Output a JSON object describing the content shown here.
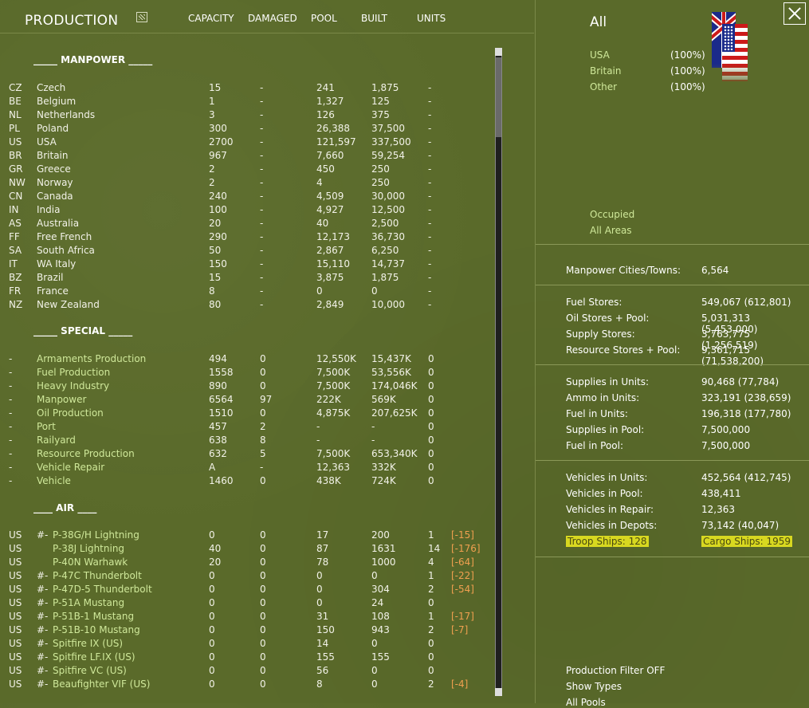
{
  "header": {
    "title": "PRODUCTION",
    "columns": [
      "CAPACITY",
      "DAMAGED",
      "POOL",
      "BUILT",
      "UNITS"
    ]
  },
  "sections": {
    "manpower": "_____ MANPOWER _____",
    "special": "_____ SPECIAL _____",
    "air": "____ AIR ____"
  },
  "manpower": [
    {
      "code": "CZ",
      "name": "Czech",
      "cap": "15",
      "dam": "-",
      "pool": "241",
      "built": "1,875",
      "units": "-"
    },
    {
      "code": "BE",
      "name": "Belgium",
      "cap": "1",
      "dam": "-",
      "pool": "1,327",
      "built": "125",
      "units": "-"
    },
    {
      "code": "NL",
      "name": "Netherlands",
      "cap": "3",
      "dam": "-",
      "pool": "126",
      "built": "375",
      "units": "-"
    },
    {
      "code": "PL",
      "name": "Poland",
      "cap": "300",
      "dam": "-",
      "pool": "26,388",
      "built": "37,500",
      "units": "-"
    },
    {
      "code": "US",
      "name": "USA",
      "cap": "2700",
      "dam": "-",
      "pool": "121,597",
      "built": "337,500",
      "units": "-"
    },
    {
      "code": "BR",
      "name": "Britain",
      "cap": "967",
      "dam": "-",
      "pool": "7,660",
      "built": "59,254",
      "units": "-"
    },
    {
      "code": "GR",
      "name": "Greece",
      "cap": "2",
      "dam": "-",
      "pool": "450",
      "built": "250",
      "units": "-"
    },
    {
      "code": "NW",
      "name": "Norway",
      "cap": "2",
      "dam": "-",
      "pool": "4",
      "built": "250",
      "units": "-"
    },
    {
      "code": "CN",
      "name": "Canada",
      "cap": "240",
      "dam": "-",
      "pool": "4,509",
      "built": "30,000",
      "units": "-"
    },
    {
      "code": "IN",
      "name": "India",
      "cap": "100",
      "dam": "-",
      "pool": "4,927",
      "built": "12,500",
      "units": "-"
    },
    {
      "code": "AS",
      "name": "Australia",
      "cap": "20",
      "dam": "-",
      "pool": "40",
      "built": "2,500",
      "units": "-"
    },
    {
      "code": "FF",
      "name": "Free French",
      "cap": "290",
      "dam": "-",
      "pool": "12,173",
      "built": "36,730",
      "units": "-"
    },
    {
      "code": "SA",
      "name": "South Africa",
      "cap": "50",
      "dam": "-",
      "pool": "2,867",
      "built": "6,250",
      "units": "-"
    },
    {
      "code": "IT",
      "name": "WA Italy",
      "cap": "150",
      "dam": "-",
      "pool": "15,110",
      "built": "14,737",
      "units": "-"
    },
    {
      "code": "BZ",
      "name": "Brazil",
      "cap": "15",
      "dam": "-",
      "pool": "3,875",
      "built": "1,875",
      "units": "-"
    },
    {
      "code": "FR",
      "name": "France",
      "cap": "8",
      "dam": "-",
      "pool": "0",
      "built": "0",
      "units": "-"
    },
    {
      "code": "NZ",
      "name": "New Zealand",
      "cap": "80",
      "dam": "-",
      "pool": "2,849",
      "built": "10,000",
      "units": "-"
    }
  ],
  "special": [
    {
      "code": "-",
      "name": "Armaments Production",
      "cap": "494",
      "dam": "0",
      "pool": "12,550K",
      "built": "15,437K",
      "units": "0"
    },
    {
      "code": "-",
      "name": "Fuel Production",
      "cap": "1558",
      "dam": "0",
      "pool": "7,500K",
      "built": "53,556K",
      "units": "0"
    },
    {
      "code": "-",
      "name": "Heavy Industry",
      "cap": "890",
      "dam": "0",
      "pool": "7,500K",
      "built": "174,046K",
      "units": "0"
    },
    {
      "code": "-",
      "name": "Manpower",
      "cap": "6564",
      "dam": "97",
      "pool": "222K",
      "built": "569K",
      "units": "0"
    },
    {
      "code": "-",
      "name": "Oil Production",
      "cap": "1510",
      "dam": "0",
      "pool": "4,875K",
      "built": "207,625K",
      "units": "0"
    },
    {
      "code": "-",
      "name": "Port",
      "cap": "457",
      "dam": "2",
      "pool": "-",
      "built": "-",
      "units": "0"
    },
    {
      "code": "-",
      "name": "Railyard",
      "cap": "638",
      "dam": "8",
      "pool": "-",
      "built": "-",
      "units": "0"
    },
    {
      "code": "-",
      "name": "Resource Production",
      "cap": "632",
      "dam": "5",
      "pool": "7,500K",
      "built": "653,340K",
      "units": "0"
    },
    {
      "code": "-",
      "name": "Vehicle Repair",
      "cap": "A",
      "dam": "-",
      "pool": "12,363",
      "built": "332K",
      "units": "0"
    },
    {
      "code": "-",
      "name": "Vehicle",
      "cap": "1460",
      "dam": "0",
      "pool": "438K",
      "built": "724K",
      "units": "0"
    }
  ],
  "air": [
    {
      "code": "US",
      "pre": "#-",
      "name": "P-38G/H Lightning",
      "cap": "0",
      "dam": "0",
      "pool": "17",
      "built": "200",
      "units": "1",
      "neg": "[-15]"
    },
    {
      "code": "US",
      "pre": "",
      "name": "P-38J Lightning",
      "cap": "40",
      "dam": "0",
      "pool": "87",
      "built": "1631",
      "units": "14",
      "neg": "[-176]"
    },
    {
      "code": "US",
      "pre": "",
      "name": "P-40N Warhawk",
      "cap": "20",
      "dam": "0",
      "pool": "78",
      "built": "1000",
      "units": "4",
      "neg": "[-64]"
    },
    {
      "code": "US",
      "pre": "#-",
      "name": "P-47C Thunderbolt",
      "cap": "0",
      "dam": "0",
      "pool": "0",
      "built": "0",
      "units": "1",
      "neg": "[-22]"
    },
    {
      "code": "US",
      "pre": "#-",
      "name": "P-47D-5 Thunderbolt",
      "cap": "0",
      "dam": "0",
      "pool": "0",
      "built": "304",
      "units": "2",
      "neg": "[-54]"
    },
    {
      "code": "US",
      "pre": "#-",
      "name": "P-51A Mustang",
      "cap": "0",
      "dam": "0",
      "pool": "0",
      "built": "24",
      "units": "0",
      "neg": ""
    },
    {
      "code": "US",
      "pre": "#-",
      "name": "P-51B-1 Mustang",
      "cap": "0",
      "dam": "0",
      "pool": "31",
      "built": "108",
      "units": "1",
      "neg": "[-17]"
    },
    {
      "code": "US",
      "pre": "#-",
      "name": "P-51B-10 Mustang",
      "cap": "0",
      "dam": "0",
      "pool": "150",
      "built": "943",
      "units": "2",
      "neg": "[-7]"
    },
    {
      "code": "US",
      "pre": "#-",
      "name": "Spitfire IX (US)",
      "cap": "0",
      "dam": "0",
      "pool": "14",
      "built": "0",
      "units": "0",
      "neg": ""
    },
    {
      "code": "US",
      "pre": "#-",
      "name": "Spitfire LF.IX (US)",
      "cap": "0",
      "dam": "0",
      "pool": "155",
      "built": "155",
      "units": "0",
      "neg": ""
    },
    {
      "code": "US",
      "pre": "#-",
      "name": "Spitfire VC (US)",
      "cap": "0",
      "dam": "0",
      "pool": "56",
      "built": "0",
      "units": "0",
      "neg": ""
    },
    {
      "code": "US",
      "pre": "#-",
      "name": "Beaufighter VIF (US)",
      "cap": "0",
      "dam": "0",
      "pool": "8",
      "built": "0",
      "units": "2",
      "neg": "[-4]"
    }
  ],
  "right": {
    "title": "All",
    "nations": [
      {
        "name": "USA",
        "pct": "(100%)"
      },
      {
        "name": "Britain",
        "pct": "(100%)"
      },
      {
        "name": "Other",
        "pct": "(100%)"
      }
    ],
    "occupied": "Occupied",
    "all_areas": "All Areas",
    "manpower_cities": {
      "label": "Manpower Cities/Towns:",
      "value": "6,564"
    },
    "stores": [
      {
        "label": "Fuel Stores:",
        "value": "549,067 (612,801)"
      },
      {
        "label": "Oil Stores + Pool:",
        "value": "5,031,313 (5,453,000)"
      },
      {
        "label": "Supply Stores:",
        "value": "3,763,775 (1,256,519)"
      },
      {
        "label": "Resource Stores + Pool:",
        "value": "9,361,715 (71,538,200)"
      }
    ],
    "supplies": [
      {
        "label": "Supplies in Units:",
        "value": "90,468 (77,784)"
      },
      {
        "label": "Ammo in Units:",
        "value": "323,191 (238,659)"
      },
      {
        "label": "Fuel in Units:",
        "value": "196,318 (177,780)"
      },
      {
        "label": "Supplies in Pool:",
        "value": "7,500,000"
      },
      {
        "label": "Fuel in Pool:",
        "value": "7,500,000"
      }
    ],
    "vehicles": [
      {
        "label": "Vehicles in Units:",
        "value": "452,564 (412,745)"
      },
      {
        "label": "Vehicles in Pool:",
        "value": "438,411"
      },
      {
        "label": "Vehicles in Repair:",
        "value": "12,363"
      },
      {
        "label": "Vehicles in Depots:",
        "value": "73,142 (40,047)"
      }
    ],
    "troop_ships": "Troop Ships: 128",
    "cargo_ships": "Cargo Ships: 1959",
    "production_filter": "Production Filter OFF",
    "show_types": "Show Types",
    "all_pools": "All Pools"
  }
}
